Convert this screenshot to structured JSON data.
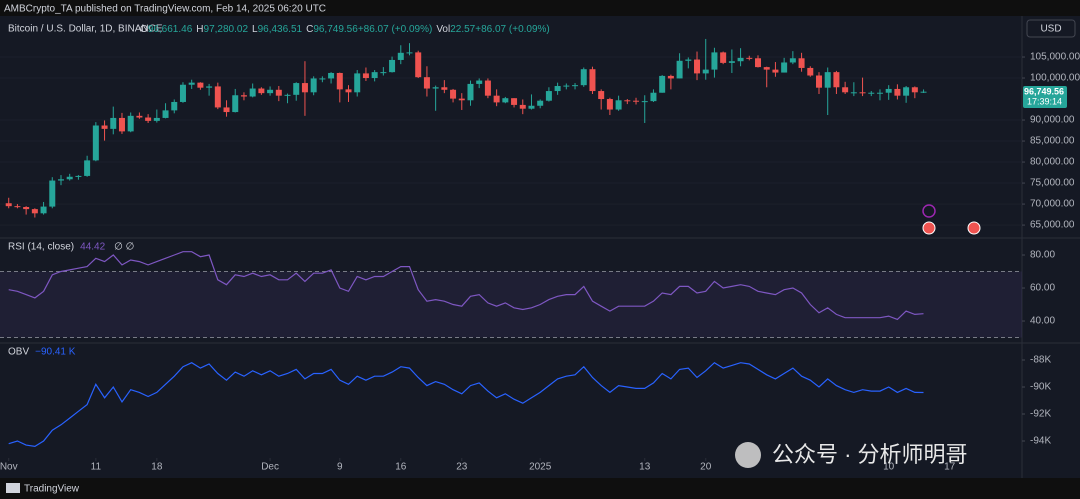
{
  "screen": {
    "publisher": "AMBCrypto_TA published on TradingView.com, Feb 14, 2025 06:20 UTC",
    "currency": "USD",
    "last_price": "96,749.56",
    "countdown": "17:39:14",
    "watermark": "公众号 · 分析师明哥",
    "footer": "TradingView"
  },
  "chart_data": [
    {
      "type": "candlestick",
      "title": "Bitcoin / U.S. Dollar, 1D, BINANCE",
      "legend": [
        {
          "key": "O",
          "value": "96,661.46"
        },
        {
          "key": "H",
          "value": "97,280.02"
        },
        {
          "key": "L",
          "value": "96,436.51"
        },
        {
          "key": "C",
          "value": "96,749.56"
        },
        {
          "key": "",
          "value": "+86.07 (+0.09%)"
        },
        {
          "key": "Vol",
          "value": "22.57"
        },
        {
          "key": "",
          "value": "+86.07 (+0.09%)"
        }
      ],
      "up_color": "#26a69a",
      "down_color": "#ef5350",
      "grid": true,
      "xlim": [
        -1,
        116.3
      ],
      "xticks": [
        {
          "value": 0,
          "label": "Nov"
        },
        {
          "value": 10,
          "label": "11"
        },
        {
          "value": 17,
          "label": "18"
        },
        {
          "value": 30,
          "label": "Dec"
        },
        {
          "value": 38,
          "label": "9"
        },
        {
          "value": 45,
          "label": "16"
        },
        {
          "value": 52,
          "label": "23"
        },
        {
          "value": 61,
          "label": "2025"
        },
        {
          "value": 73,
          "label": "13"
        },
        {
          "value": 80,
          "label": "20"
        },
        {
          "value": 101,
          "label": "10"
        },
        {
          "value": 108,
          "label": "17"
        }
      ],
      "ylim": [
        62400,
        115000
      ],
      "yticks": [
        {
          "value": 105000,
          "label": "105,000.00"
        },
        {
          "value": 100000,
          "label": "100,000.00"
        },
        {
          "value": 90000,
          "label": "90,000.00"
        },
        {
          "value": 85000,
          "label": "85,000.00"
        },
        {
          "value": 80000,
          "label": "80,000.00"
        },
        {
          "value": 75000,
          "label": "75,000.00"
        },
        {
          "value": 70000,
          "label": "70,000.00"
        },
        {
          "value": 65000,
          "label": "65,000.00"
        }
      ],
      "ohlc": [
        [
          70200,
          71500,
          69000,
          69500
        ],
        [
          69500,
          70000,
          69000,
          69300
        ],
        [
          69300,
          69500,
          67500,
          68800
        ],
        [
          68800,
          69000,
          66800,
          67800
        ],
        [
          67800,
          70500,
          67500,
          69400
        ],
        [
          69400,
          76400,
          69000,
          75600
        ],
        [
          75600,
          76900,
          74500,
          75900
        ],
        [
          75900,
          77200,
          75600,
          76500
        ],
        [
          76500,
          76900,
          75800,
          76700
        ],
        [
          76700,
          81500,
          76500,
          80400
        ],
        [
          80400,
          89500,
          80200,
          88700
        ],
        [
          88700,
          89900,
          85100,
          87900
        ],
        [
          87900,
          93200,
          86600,
          90500
        ],
        [
          90500,
          91700,
          86700,
          87300
        ],
        [
          87300,
          91800,
          87100,
          91000
        ],
        [
          91000,
          91800,
          90300,
          90600
        ],
        [
          90600,
          91400,
          89300,
          89800
        ],
        [
          89800,
          92500,
          89400,
          90500
        ],
        [
          90500,
          94000,
          90400,
          92300
        ],
        [
          92300,
          94900,
          91600,
          94300
        ],
        [
          94300,
          99000,
          94100,
          98400
        ],
        [
          98400,
          99600,
          97400,
          98900
        ],
        [
          98900,
          99000,
          97200,
          97700
        ],
        [
          97700,
          98600,
          95800,
          98000
        ],
        [
          98000,
          98900,
          92600,
          93000
        ],
        [
          93000,
          94700,
          90800,
          91900
        ],
        [
          91900,
          97400,
          91800,
          95900
        ],
        [
          95900,
          96600,
          94700,
          95600
        ],
        [
          95600,
          98700,
          95400,
          97500
        ],
        [
          97500,
          97800,
          96000,
          96400
        ],
        [
          96400,
          98000,
          95800,
          97200
        ],
        [
          97200,
          98100,
          94500,
          95800
        ],
        [
          95800,
          96300,
          94000,
          96000
        ],
        [
          96000,
          99000,
          94600,
          98800
        ],
        [
          98800,
          104000,
          91000,
          96600
        ],
        [
          96600,
          100400,
          95900,
          99900
        ],
        [
          99900,
          100400,
          99000,
          99900
        ],
        [
          99900,
          101400,
          98700,
          101200
        ],
        [
          101200,
          101300,
          94200,
          97300
        ],
        [
          97300,
          98300,
          94300,
          96600
        ],
        [
          96600,
          101900,
          95600,
          101100
        ],
        [
          101100,
          102500,
          99300,
          100000
        ],
        [
          100000,
          101900,
          99200,
          101400
        ],
        [
          101400,
          102600,
          100600,
          101400
        ],
        [
          101400,
          105100,
          101300,
          104300
        ],
        [
          104300,
          107800,
          103300,
          106000
        ],
        [
          106000,
          108300,
          105400,
          106100
        ],
        [
          106100,
          106500,
          100000,
          100200
        ],
        [
          100200,
          102800,
          95600,
          97500
        ],
        [
          97500,
          98200,
          92200,
          97800
        ],
        [
          97800,
          99500,
          96400,
          97200
        ],
        [
          97200,
          97400,
          94200,
          95100
        ],
        [
          95100,
          96400,
          92400,
          94700
        ],
        [
          94700,
          99400,
          93400,
          98600
        ],
        [
          98600,
          99900,
          97600,
          99400
        ],
        [
          99400,
          99900,
          95200,
          95800
        ],
        [
          95800,
          97300,
          93300,
          94200
        ],
        [
          94200,
          95500,
          94000,
          95200
        ],
        [
          95200,
          95200,
          93000,
          93600
        ],
        [
          93600,
          94900,
          91400,
          92700
        ],
        [
          92700,
          96100,
          92500,
          93400
        ],
        [
          93400,
          94900,
          92800,
          94600
        ],
        [
          94600,
          97800,
          94400,
          96900
        ],
        [
          96900,
          98900,
          96000,
          98100
        ],
        [
          98100,
          98700,
          97300,
          98200
        ],
        [
          98200,
          98800,
          97300,
          98300
        ],
        [
          98300,
          102500,
          97900,
          102100
        ],
        [
          102100,
          102700,
          96200,
          96900
        ],
        [
          96900,
          97300,
          92500,
          95000
        ],
        [
          95000,
          95300,
          91200,
          92500
        ],
        [
          92500,
          95800,
          92200,
          94700
        ],
        [
          94700,
          95000,
          93800,
          94600
        ],
        [
          94600,
          95300,
          93700,
          94500
        ],
        [
          94500,
          95900,
          89300,
          94500
        ],
        [
          94500,
          97300,
          94300,
          96500
        ],
        [
          96500,
          100700,
          96500,
          100500
        ],
        [
          100500,
          100800,
          97300,
          99900
        ],
        [
          99900,
          105900,
          99900,
          104100
        ],
        [
          104100,
          104900,
          102300,
          104400
        ],
        [
          104400,
          106300,
          99500,
          101100
        ],
        [
          101100,
          109300,
          99600,
          102000
        ],
        [
          102000,
          107200,
          100100,
          106100
        ],
        [
          106100,
          106300,
          103300,
          103600
        ],
        [
          103600,
          106800,
          101200,
          104000
        ],
        [
          104000,
          107100,
          102800,
          104800
        ],
        [
          104800,
          105300,
          104200,
          104700
        ],
        [
          104700,
          105400,
          102500,
          102600
        ],
        [
          102600,
          102700,
          97800,
          102000
        ],
        [
          102000,
          103800,
          100300,
          101300
        ],
        [
          101300,
          104800,
          101300,
          103700
        ],
        [
          103700,
          106400,
          103300,
          104700
        ],
        [
          104700,
          106000,
          101500,
          102400
        ],
        [
          102400,
          102800,
          100300,
          100600
        ],
        [
          100600,
          101400,
          96200,
          97700
        ],
        [
          97700,
          102500,
          91200,
          101400
        ],
        [
          101400,
          101700,
          96200,
          97800
        ],
        [
          97800,
          99100,
          96200,
          96600
        ],
        [
          96600,
          99000,
          95700,
          96600
        ],
        [
          96600,
          100100,
          95700,
          96500
        ],
        [
          96500,
          96900,
          95700,
          96500
        ],
        [
          96500,
          97300,
          94700,
          96500
        ],
        [
          96500,
          98300,
          94800,
          97400
        ],
        [
          97400,
          98500,
          94900,
          95800
        ],
        [
          95800,
          98100,
          94100,
          97800
        ],
        [
          97800,
          98000,
          95200,
          96600
        ],
        [
          96661.46,
          97280.02,
          96436.51,
          96749.56
        ]
      ]
    },
    {
      "type": "line",
      "title": "RSI (14, close)",
      "flags": "∅ ∅",
      "color": "#7e57c2",
      "band_fill": "#7e57c2",
      "bands": [
        70,
        30
      ],
      "ylim": [
        28.5,
        89.1
      ],
      "yticks": [
        {
          "value": 80,
          "label": "80.00"
        },
        {
          "value": 60,
          "label": "60.00"
        },
        {
          "value": 40,
          "label": "40.00"
        }
      ],
      "values": [
        59,
        58,
        56,
        54,
        58,
        68,
        70,
        71,
        72,
        73,
        78,
        76,
        80,
        74,
        77,
        76,
        74,
        76,
        78,
        80,
        82,
        82,
        79,
        80,
        65,
        62,
        68,
        67,
        69,
        67,
        68,
        65,
        65,
        69,
        64,
        69,
        69,
        71,
        60,
        58,
        67,
        65,
        67,
        67,
        70,
        73,
        73,
        59,
        52,
        53,
        52,
        50,
        49,
        55,
        56,
        51,
        49,
        51,
        48,
        47,
        48,
        50,
        53,
        55,
        56,
        56,
        61,
        52,
        49,
        46,
        49,
        49,
        49,
        49,
        52,
        57,
        56,
        61,
        61,
        57,
        58,
        64,
        60,
        61,
        62,
        61,
        58,
        57,
        56,
        59,
        60,
        57,
        50,
        45,
        48,
        44,
        42,
        42,
        42,
        42,
        42,
        43,
        41,
        46,
        44,
        44.42
      ]
    },
    {
      "type": "line",
      "title": "OBV",
      "value_label": "−90.41 K",
      "color": "#2962ff",
      "ylim": [
        -95185,
        -86889
      ],
      "yticks": [
        {
          "value": -88000,
          "label": "-88K"
        },
        {
          "value": -90000,
          "label": "-90K"
        },
        {
          "value": -92000,
          "label": "-92K"
        },
        {
          "value": -94000,
          "label": "-94K"
        }
      ],
      "values": [
        -94200,
        -94000,
        -94300,
        -94400,
        -94000,
        -93200,
        -92800,
        -92300,
        -91800,
        -91300,
        -89800,
        -90800,
        -90000,
        -91100,
        -90200,
        -90400,
        -90700,
        -90400,
        -89800,
        -89200,
        -88500,
        -88200,
        -88600,
        -88300,
        -89000,
        -89500,
        -88900,
        -89200,
        -88800,
        -89100,
        -88800,
        -89200,
        -89000,
        -88700,
        -89400,
        -89000,
        -89000,
        -88700,
        -89500,
        -89800,
        -89200,
        -89500,
        -89200,
        -89200,
        -88900,
        -88500,
        -88600,
        -89300,
        -89900,
        -89600,
        -89800,
        -90200,
        -90500,
        -89900,
        -89700,
        -90300,
        -90800,
        -90500,
        -90900,
        -91200,
        -90800,
        -90400,
        -89900,
        -89400,
        -89200,
        -89100,
        -88500,
        -89300,
        -89900,
        -90400,
        -89900,
        -90000,
        -90100,
        -90100,
        -89700,
        -89000,
        -89400,
        -88700,
        -88600,
        -89300,
        -88800,
        -88200,
        -88600,
        -88400,
        -88200,
        -88300,
        -88700,
        -89100,
        -89400,
        -89000,
        -88600,
        -89200,
        -89500,
        -90000,
        -89400,
        -89900,
        -90200,
        -90400,
        -90200,
        -90300,
        -90300,
        -90000,
        -90400,
        -90100,
        -90400,
        -90410
      ]
    }
  ]
}
